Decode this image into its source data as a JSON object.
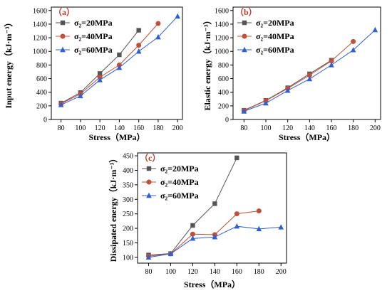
{
  "chart_data": [
    {
      "panel": "（a）",
      "type": "line",
      "xlabel": "Stress（MPa）",
      "ylabel": "Input energy（kJ·m⁻³）",
      "xlim": [
        70,
        205
      ],
      "ylim": [
        0,
        1650
      ],
      "xticks": [
        80,
        100,
        120,
        140,
        160,
        180,
        200
      ],
      "yticks": [
        0,
        200,
        400,
        600,
        800,
        1000,
        1200,
        1400,
        1600
      ],
      "legend_position": "top-left",
      "series": [
        {
          "name": "σ₂=20MPa",
          "color": "#555555",
          "marker": "square",
          "x": [
            80,
            100,
            120,
            140,
            160
          ],
          "y": [
            240,
            395,
            675,
            950,
            1310
          ]
        },
        {
          "name": "σ₂=40MPa",
          "color": "#c0503a",
          "marker": "circle",
          "x": [
            80,
            100,
            120,
            140,
            160,
            180
          ],
          "y": [
            230,
            375,
            620,
            800,
            1090,
            1410
          ]
        },
        {
          "name": "σ₂=60MPa",
          "color": "#2f5fd0",
          "marker": "triangle",
          "x": [
            80,
            100,
            120,
            140,
            160,
            180,
            200
          ],
          "y": [
            215,
            345,
            580,
            760,
            1000,
            1210,
            1515
          ]
        }
      ]
    },
    {
      "panel": "（b）",
      "type": "line",
      "xlabel": "Stress（MPa）",
      "ylabel": "Elastic energy（kJ·m⁻³）",
      "xlim": [
        70,
        205
      ],
      "ylim": [
        0,
        1650
      ],
      "xticks": [
        80,
        100,
        120,
        140,
        160,
        180,
        200
      ],
      "yticks": [
        0,
        200,
        400,
        600,
        800,
        1000,
        1200,
        1400,
        1600
      ],
      "legend_position": "top-left",
      "series": [
        {
          "name": "σ₂=20MPa",
          "color": "#555555",
          "marker": "square",
          "x": [
            80,
            100,
            120,
            140,
            160
          ],
          "y": [
            135,
            280,
            465,
            670,
            870
          ]
        },
        {
          "name": "σ₂=40MPa",
          "color": "#c0503a",
          "marker": "circle",
          "x": [
            80,
            100,
            120,
            140,
            160,
            180
          ],
          "y": [
            130,
            275,
            455,
            650,
            860,
            1145
          ]
        },
        {
          "name": "σ₂=60MPa",
          "color": "#2f5fd0",
          "marker": "triangle",
          "x": [
            80,
            100,
            120,
            140,
            160,
            180,
            200
          ],
          "y": [
            120,
            240,
            425,
            595,
            800,
            1020,
            1315
          ]
        }
      ]
    },
    {
      "panel": "（c）",
      "type": "line",
      "xlabel": "Stress（MPa）",
      "ylabel": "Dissipated energy（kJ·m⁻³）",
      "xlim": [
        70,
        205
      ],
      "ylim": [
        80,
        460
      ],
      "xticks": [
        80,
        100,
        120,
        140,
        160,
        180,
        200
      ],
      "yticks": [
        100,
        150,
        200,
        250,
        300,
        350,
        400,
        450
      ],
      "legend_position": "top-left",
      "series": [
        {
          "name": "σ₂=20MPa",
          "color": "#555555",
          "marker": "square",
          "x": [
            80,
            100,
            120,
            140,
            160
          ],
          "y": [
            108,
            113,
            210,
            285,
            443
          ]
        },
        {
          "name": "σ₂=40MPa",
          "color": "#c0503a",
          "marker": "circle",
          "x": [
            80,
            100,
            120,
            140,
            160,
            180
          ],
          "y": [
            104,
            112,
            180,
            178,
            250,
            260
          ]
        },
        {
          "name": "σ₂=60MPa",
          "color": "#2f5fd0",
          "marker": "triangle",
          "x": [
            80,
            100,
            120,
            140,
            160,
            180,
            200
          ],
          "y": [
            100,
            112,
            165,
            170,
            207,
            198,
            204
          ]
        }
      ]
    }
  ]
}
